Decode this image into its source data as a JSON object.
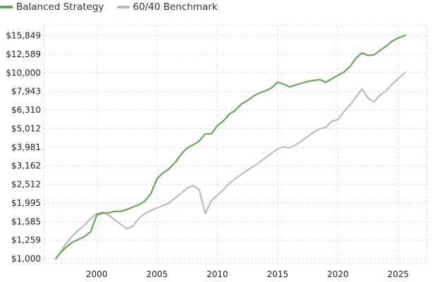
{
  "chart_data": {
    "type": "line",
    "title": "",
    "xlabel": "",
    "ylabel": "",
    "y_scale": "log",
    "ylim": [
      950,
      18000
    ],
    "xlim": [
      1995.6,
      2027.4
    ],
    "grid": true,
    "grid_style": "dashed",
    "legend_position": "top-left",
    "y_ticks": [
      {
        "value": 1000,
        "label": "$1,000"
      },
      {
        "value": 1259,
        "label": "$1,259"
      },
      {
        "value": 1585,
        "label": "$1,585"
      },
      {
        "value": 1995,
        "label": "$1,995"
      },
      {
        "value": 2512,
        "label": "$2,512"
      },
      {
        "value": 3162,
        "label": "$3,162"
      },
      {
        "value": 3981,
        "label": "$3,981"
      },
      {
        "value": 5012,
        "label": "$5,012"
      },
      {
        "value": 6310,
        "label": "$6,310"
      },
      {
        "value": 7943,
        "label": "$7,943"
      },
      {
        "value": 10000,
        "label": "$10,000"
      },
      {
        "value": 12589,
        "label": "$12,589"
      },
      {
        "value": 15849,
        "label": "$15,849"
      }
    ],
    "x_ticks": [
      {
        "value": 2000,
        "label": "2000"
      },
      {
        "value": 2005,
        "label": "2005"
      },
      {
        "value": 2010,
        "label": "2010"
      },
      {
        "value": 2015,
        "label": "2015"
      },
      {
        "value": 2020,
        "label": "2020"
      },
      {
        "value": 2025,
        "label": "2025"
      }
    ],
    "series": [
      {
        "name": "Balanced Strategy",
        "color": "#6aa35a",
        "points": [
          [
            1996.6,
            1000
          ],
          [
            1997.0,
            1080
          ],
          [
            1997.5,
            1160
          ],
          [
            1998.0,
            1230
          ],
          [
            1998.5,
            1270
          ],
          [
            1999.0,
            1320
          ],
          [
            1999.5,
            1400
          ],
          [
            2000.0,
            1720
          ],
          [
            2000.5,
            1760
          ],
          [
            2001.0,
            1770
          ],
          [
            2001.5,
            1800
          ],
          [
            2002.0,
            1800
          ],
          [
            2002.5,
            1840
          ],
          [
            2003.0,
            1900
          ],
          [
            2003.5,
            1950
          ],
          [
            2004.0,
            2050
          ],
          [
            2004.5,
            2250
          ],
          [
            2005.0,
            2700
          ],
          [
            2005.5,
            2900
          ],
          [
            2006.0,
            3050
          ],
          [
            2006.5,
            3300
          ],
          [
            2007.0,
            3650
          ],
          [
            2007.5,
            3950
          ],
          [
            2008.0,
            4100
          ],
          [
            2008.5,
            4300
          ],
          [
            2009.0,
            4700
          ],
          [
            2009.5,
            4700
          ],
          [
            2010.0,
            5200
          ],
          [
            2010.5,
            5500
          ],
          [
            2011.0,
            6000
          ],
          [
            2011.5,
            6300
          ],
          [
            2012.0,
            6800
          ],
          [
            2012.5,
            7100
          ],
          [
            2013.0,
            7500
          ],
          [
            2013.5,
            7800
          ],
          [
            2014.0,
            8000
          ],
          [
            2014.5,
            8300
          ],
          [
            2015.0,
            8900
          ],
          [
            2015.5,
            8700
          ],
          [
            2016.0,
            8400
          ],
          [
            2016.5,
            8600
          ],
          [
            2017.0,
            8800
          ],
          [
            2017.5,
            9000
          ],
          [
            2018.0,
            9100
          ],
          [
            2018.5,
            9200
          ],
          [
            2019.0,
            8900
          ],
          [
            2019.5,
            9300
          ],
          [
            2020.0,
            9700
          ],
          [
            2020.5,
            10100
          ],
          [
            2021.0,
            10800
          ],
          [
            2021.5,
            12000
          ],
          [
            2022.0,
            12800
          ],
          [
            2022.5,
            12400
          ],
          [
            2023.0,
            12500
          ],
          [
            2023.5,
            13200
          ],
          [
            2024.0,
            13900
          ],
          [
            2024.5,
            14800
          ],
          [
            2025.0,
            15400
          ],
          [
            2025.6,
            15900
          ]
        ]
      },
      {
        "name": "60/40 Benchmark",
        "color": "#bcbcbc",
        "points": [
          [
            1996.6,
            1000
          ],
          [
            1997.0,
            1090
          ],
          [
            1997.5,
            1220
          ],
          [
            1998.0,
            1330
          ],
          [
            1998.5,
            1430
          ],
          [
            1999.0,
            1520
          ],
          [
            1999.5,
            1650
          ],
          [
            2000.0,
            1750
          ],
          [
            2000.5,
            1780
          ],
          [
            2001.0,
            1720
          ],
          [
            2001.5,
            1620
          ],
          [
            2002.0,
            1530
          ],
          [
            2002.5,
            1450
          ],
          [
            2003.0,
            1500
          ],
          [
            2003.5,
            1650
          ],
          [
            2004.0,
            1750
          ],
          [
            2004.5,
            1820
          ],
          [
            2005.0,
            1880
          ],
          [
            2005.5,
            1930
          ],
          [
            2006.0,
            2000
          ],
          [
            2006.5,
            2120
          ],
          [
            2007.0,
            2250
          ],
          [
            2007.5,
            2400
          ],
          [
            2008.0,
            2480
          ],
          [
            2008.5,
            2350
          ],
          [
            2009.0,
            1750
          ],
          [
            2009.5,
            2050
          ],
          [
            2010.0,
            2200
          ],
          [
            2010.5,
            2350
          ],
          [
            2011.0,
            2550
          ],
          [
            2011.5,
            2700
          ],
          [
            2012.0,
            2850
          ],
          [
            2012.5,
            3000
          ],
          [
            2013.0,
            3150
          ],
          [
            2013.5,
            3300
          ],
          [
            2014.0,
            3500
          ],
          [
            2014.5,
            3700
          ],
          [
            2015.0,
            3900
          ],
          [
            2015.5,
            4000
          ],
          [
            2016.0,
            3950
          ],
          [
            2016.5,
            4100
          ],
          [
            2017.0,
            4300
          ],
          [
            2017.5,
            4550
          ],
          [
            2018.0,
            4800
          ],
          [
            2018.5,
            5000
          ],
          [
            2019.0,
            5100
          ],
          [
            2019.5,
            5500
          ],
          [
            2020.0,
            5600
          ],
          [
            2020.5,
            6200
          ],
          [
            2021.0,
            6700
          ],
          [
            2021.5,
            7400
          ],
          [
            2022.0,
            8200
          ],
          [
            2022.5,
            7300
          ],
          [
            2023.0,
            7000
          ],
          [
            2023.5,
            7600
          ],
          [
            2024.0,
            8000
          ],
          [
            2024.5,
            8700
          ],
          [
            2025.0,
            9300
          ],
          [
            2025.6,
            10100
          ]
        ]
      }
    ]
  }
}
